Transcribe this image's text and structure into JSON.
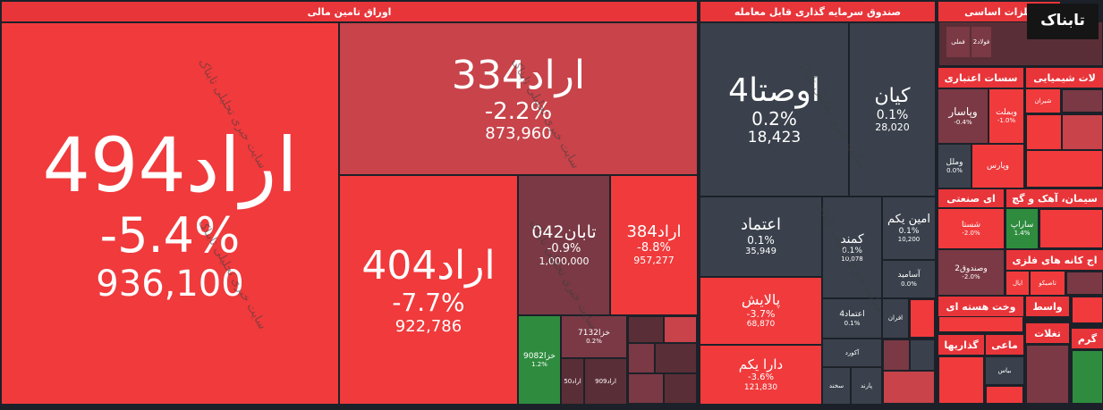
{
  "watermark": "سایت خبری تحلیلی تابناک",
  "logo": "تابناک",
  "sectors": [
    {
      "title": "اوراق تامین مالی",
      "tiles": [
        {
          "symbol": "اراد494",
          "change": "-5.4%",
          "volume": "936,100"
        },
        {
          "symbol": "اراد334",
          "change": "-2.2%",
          "volume": "873,960"
        },
        {
          "symbol": "اراد404",
          "change": "-7.7%",
          "volume": "922,786"
        },
        {
          "symbol": "تابان042",
          "change": "-0.9%",
          "volume": "1,000,000"
        },
        {
          "symbol": "اراد384",
          "change": "-8.8%",
          "volume": "957,277"
        },
        {
          "symbol": "خزا9082",
          "change": "1.2%"
        },
        {
          "symbol": "خزا7132",
          "change": "0.2%"
        },
        {
          "symbol": "اراد50"
        },
        {
          "symbol": "اراد909"
        }
      ]
    },
    {
      "title": "صندوق سرمایه گذاری قابل معامله",
      "tiles": [
        {
          "symbol": "اوصتا4",
          "change": "0.2%",
          "volume": "18,423"
        },
        {
          "symbol": "کیان",
          "change": "0.1%",
          "volume": "28,020"
        },
        {
          "symbol": "اعتماد",
          "change": "0.1%",
          "volume": "35,949"
        },
        {
          "symbol": "کمند",
          "change": "0.1%",
          "volume": "10,078"
        },
        {
          "symbol": "امین یکم",
          "change": "0.1%",
          "volume": "10,200"
        },
        {
          "symbol": "آسامید",
          "change": "0.0%"
        },
        {
          "symbol": "پالایش",
          "change": "-3.7%",
          "volume": "68,870"
        },
        {
          "symbol": "دارا یکم",
          "change": "-3.6%",
          "volume": "121,830"
        },
        {
          "symbol": "اعتماد4",
          "change": "0.1%"
        },
        {
          "symbol": "افران"
        },
        {
          "symbol": "آکورد"
        },
        {
          "symbol": "سخند"
        },
        {
          "symbol": "پارند"
        }
      ]
    },
    {
      "title": "فلزات اساسی",
      "tiles": [
        {
          "symbol": "فولاد2"
        },
        {
          "symbol": "فملی"
        }
      ]
    },
    {
      "title": "سسات اعتباری",
      "tiles": [
        {
          "symbol": "وپاسار",
          "change": "-0.4%"
        },
        {
          "symbol": "وبملت",
          "change": "-1.0%"
        },
        {
          "symbol": "وملل",
          "change": "0.0%"
        },
        {
          "symbol": "وپارس"
        }
      ]
    },
    {
      "title": "لات شیمیایی",
      "tiles": [
        {
          "symbol": "شیران"
        }
      ]
    },
    {
      "title": "ای صنعتی",
      "tiles": [
        {
          "symbol": "شستا",
          "change": "-2.0%"
        },
        {
          "symbol": "وصندوق2",
          "change": "-2.0%"
        }
      ]
    },
    {
      "title": "سیمان، آهک و گچ",
      "tiles": [
        {
          "symbol": "ساراپ",
          "change": "1.4%"
        }
      ]
    },
    {
      "title": "اج کانه های فلزی",
      "tiles": [
        {
          "symbol": "تاصیکو"
        },
        {
          "symbol": "ایال"
        }
      ]
    },
    {
      "title": "وخت هسته ای"
    },
    {
      "title": "واسط"
    },
    {
      "title": "تغلات"
    },
    {
      "title": "گذاریها"
    },
    {
      "title": "ماعی",
      "tiles": [
        {
          "symbol": "بیاس"
        }
      ]
    },
    {
      "title": "گرم"
    }
  ]
}
